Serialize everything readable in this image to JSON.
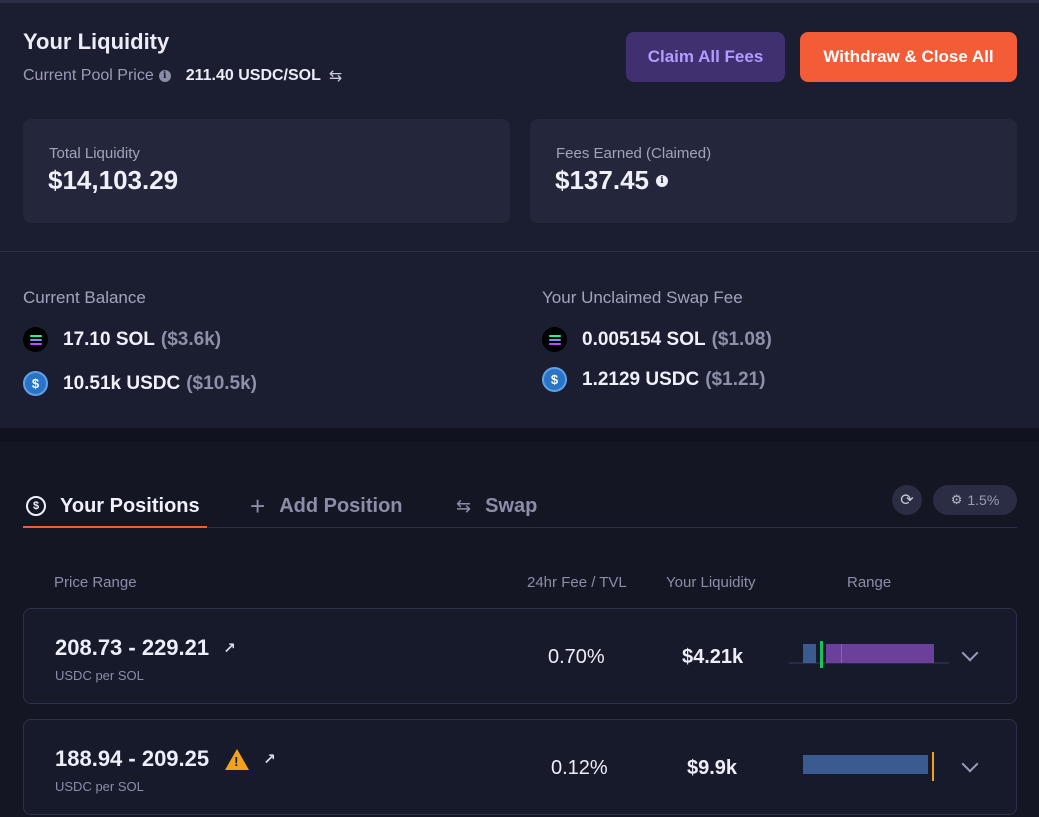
{
  "header": {
    "title": "Your Liquidity",
    "pool_price_label": "Current Pool Price",
    "pool_price_value": "211.40 USDC/SOL",
    "claim_label": "Claim All Fees",
    "withdraw_label": "Withdraw & Close All"
  },
  "stats": {
    "total_liquidity_label": "Total Liquidity",
    "total_liquidity_value": "$14,103.29",
    "fees_label": "Fees Earned (Claimed)",
    "fees_value": "$137.45"
  },
  "balance": {
    "heading": "Current Balance",
    "items": [
      {
        "amount": "17.10 SOL",
        "usd": "($3.6k)",
        "icon": "sol-icon"
      },
      {
        "amount": "10.51k USDC",
        "usd": "($10.5k)",
        "icon": "usdc-icon"
      }
    ]
  },
  "unclaimed": {
    "heading": "Your Unclaimed Swap Fee",
    "items": [
      {
        "amount": "0.005154 SOL",
        "usd": "($1.08)",
        "icon": "sol-icon"
      },
      {
        "amount": "1.2129 USDC",
        "usd": "($1.21)",
        "icon": "usdc-icon"
      }
    ]
  },
  "tabs": [
    {
      "label": "Your Positions",
      "icon": "dollar-circle-icon",
      "active": true
    },
    {
      "label": "Add Position",
      "icon": "plus-icon",
      "active": false
    },
    {
      "label": "Swap",
      "icon": "swap-arrows-icon",
      "active": false
    }
  ],
  "toolbar": {
    "slippage": "1.5%"
  },
  "columns": {
    "price_range": "Price Range",
    "fee_tvl": "24hr Fee / TVL",
    "liquidity": "Your Liquidity",
    "range": "Range"
  },
  "positions": [
    {
      "range": "208.73 - 229.21",
      "unit": "USDC per SOL",
      "fee_tvl": "0.70%",
      "liquidity": "$4.21k",
      "warning": false
    },
    {
      "range": "188.94 - 209.25",
      "unit": "USDC per SOL",
      "fee_tvl": "0.12%",
      "liquidity": "$9.9k",
      "warning": true
    }
  ],
  "colors": {
    "accent": "#f45c37",
    "claim_bg": "#40306f",
    "claim_text": "#b59bff",
    "range_purple": "#6b3f9a",
    "range_blue": "#3b5a8f",
    "in_range": "#19c25b",
    "out_of_range": "#f2a31b"
  }
}
